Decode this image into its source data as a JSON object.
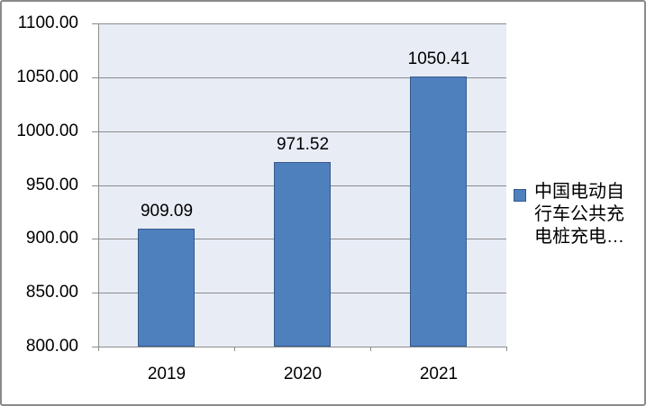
{
  "chart_data": {
    "type": "bar",
    "title": "",
    "categories": [
      "2019",
      "2020",
      "2021"
    ],
    "values": [
      909.09,
      971.52,
      1050.41
    ],
    "value_labels": [
      "909.09",
      "971.52",
      "1050.41"
    ],
    "y_ticks": [
      "1100.00",
      "1050.00",
      "1000.00",
      "950.00",
      "900.00",
      "850.00",
      "800.00"
    ],
    "ylim": [
      800,
      1100
    ],
    "y_step": 50,
    "xlabel": "",
    "ylabel": "",
    "grid": true,
    "legend_position": "right",
    "legend": {
      "label_full": "中国电动自行车公共充电桩充电…",
      "lines": [
        "中国电动自",
        "行车公共充",
        "电桩充电…"
      ]
    },
    "colors": {
      "bar_fill": "#4E80BE",
      "bar_border": "#36598C",
      "plot_bg": "#E8ECF5",
      "gridline": "#8C8C8C",
      "axis_line": "#8C8C8C",
      "text": "#000000",
      "frame_border": "#8A8A8A",
      "background": "#FFFFFF"
    }
  }
}
